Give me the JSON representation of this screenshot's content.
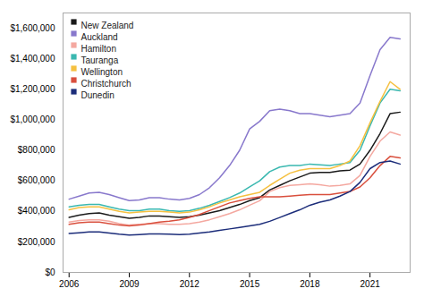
{
  "chart_data": {
    "type": "line",
    "x": [
      2006,
      2006.5,
      2007,
      2007.5,
      2008,
      2008.5,
      2009,
      2009.5,
      2010,
      2010.5,
      2011,
      2011.5,
      2012,
      2012.5,
      2013,
      2013.5,
      2014,
      2014.5,
      2015,
      2015.5,
      2016,
      2016.5,
      2017,
      2017.5,
      2018,
      2018.5,
      2019,
      2019.5,
      2020,
      2020.5,
      2021,
      2021.5,
      2022,
      2022.5
    ],
    "series": [
      {
        "name": "New Zealand",
        "color": "#1a1a1a",
        "values": [
          360000,
          375000,
          385000,
          390000,
          375000,
          365000,
          355000,
          360000,
          370000,
          370000,
          365000,
          360000,
          365000,
          375000,
          390000,
          405000,
          425000,
          445000,
          470000,
          490000,
          540000,
          570000,
          600000,
          625000,
          650000,
          655000,
          655000,
          665000,
          670000,
          710000,
          800000,
          910000,
          1040000,
          1050000
        ]
      },
      {
        "name": "Auckland",
        "color": "#8878cc",
        "values": [
          480000,
          500000,
          520000,
          525000,
          510000,
          490000,
          470000,
          475000,
          490000,
          490000,
          480000,
          475000,
          485000,
          510000,
          555000,
          620000,
          700000,
          800000,
          940000,
          990000,
          1060000,
          1070000,
          1060000,
          1040000,
          1040000,
          1030000,
          1020000,
          1030000,
          1040000,
          1110000,
          1290000,
          1460000,
          1540000,
          1530000
        ]
      },
      {
        "name": "Hamilton",
        "color": "#f4a8a0",
        "values": [
          330000,
          340000,
          345000,
          345000,
          335000,
          320000,
          310000,
          315000,
          320000,
          320000,
          315000,
          315000,
          320000,
          330000,
          345000,
          365000,
          385000,
          410000,
          440000,
          470000,
          530000,
          555000,
          570000,
          575000,
          580000,
          575000,
          565000,
          570000,
          580000,
          635000,
          760000,
          860000,
          920000,
          900000
        ]
      },
      {
        "name": "Tauranga",
        "color": "#3ab8b0",
        "values": [
          430000,
          440000,
          445000,
          445000,
          430000,
          415000,
          405000,
          405000,
          415000,
          415000,
          405000,
          400000,
          405000,
          420000,
          440000,
          465000,
          490000,
          520000,
          560000,
          600000,
          660000,
          690000,
          700000,
          700000,
          710000,
          705000,
          700000,
          710000,
          720000,
          800000,
          960000,
          1110000,
          1200000,
          1190000
        ]
      },
      {
        "name": "Wellington",
        "color": "#f5c040",
        "values": [
          410000,
          425000,
          430000,
          430000,
          415000,
          400000,
          390000,
          395000,
          400000,
          400000,
          395000,
          390000,
          395000,
          410000,
          430000,
          455000,
          475000,
          495000,
          510000,
          525000,
          570000,
          610000,
          650000,
          670000,
          680000,
          680000,
          680000,
          700000,
          730000,
          830000,
          980000,
          1120000,
          1250000,
          1200000
        ]
      },
      {
        "name": "Christchurch",
        "color": "#d94f3d",
        "values": [
          315000,
          325000,
          330000,
          330000,
          320000,
          310000,
          305000,
          310000,
          320000,
          330000,
          335000,
          345000,
          360000,
          380000,
          405000,
          430000,
          455000,
          470000,
          485000,
          495000,
          495000,
          495000,
          500000,
          505000,
          510000,
          510000,
          510000,
          520000,
          530000,
          560000,
          620000,
          700000,
          760000,
          750000
        ]
      },
      {
        "name": "Dunedin",
        "color": "#1c2d7a",
        "values": [
          255000,
          260000,
          265000,
          265000,
          258000,
          250000,
          245000,
          248000,
          252000,
          252000,
          250000,
          248000,
          250000,
          258000,
          265000,
          275000,
          285000,
          295000,
          305000,
          315000,
          335000,
          360000,
          385000,
          410000,
          440000,
          460000,
          475000,
          500000,
          530000,
          590000,
          680000,
          720000,
          730000,
          710000
        ]
      }
    ],
    "xlim": [
      2005.7,
      2023.0
    ],
    "xticks": [
      2006,
      2009,
      2012,
      2015,
      2018,
      2021
    ],
    "ylim": [
      0,
      1700000
    ],
    "yticks": [
      {
        "value": 0,
        "label": "$0"
      },
      {
        "value": 200000,
        "label": "$200,000"
      },
      {
        "value": 400000,
        "label": "$400,000"
      },
      {
        "value": 600000,
        "label": "$600,000"
      },
      {
        "value": 800000,
        "label": "$800,000"
      },
      {
        "value": 1000000,
        "label": "$1,000,000"
      },
      {
        "value": 1200000,
        "label": "$1,200,000"
      },
      {
        "value": 1400000,
        "label": "$1,400,000"
      },
      {
        "value": 1600000,
        "label": "$1,600,000"
      }
    ],
    "grid": false,
    "legend": "upper left"
  }
}
